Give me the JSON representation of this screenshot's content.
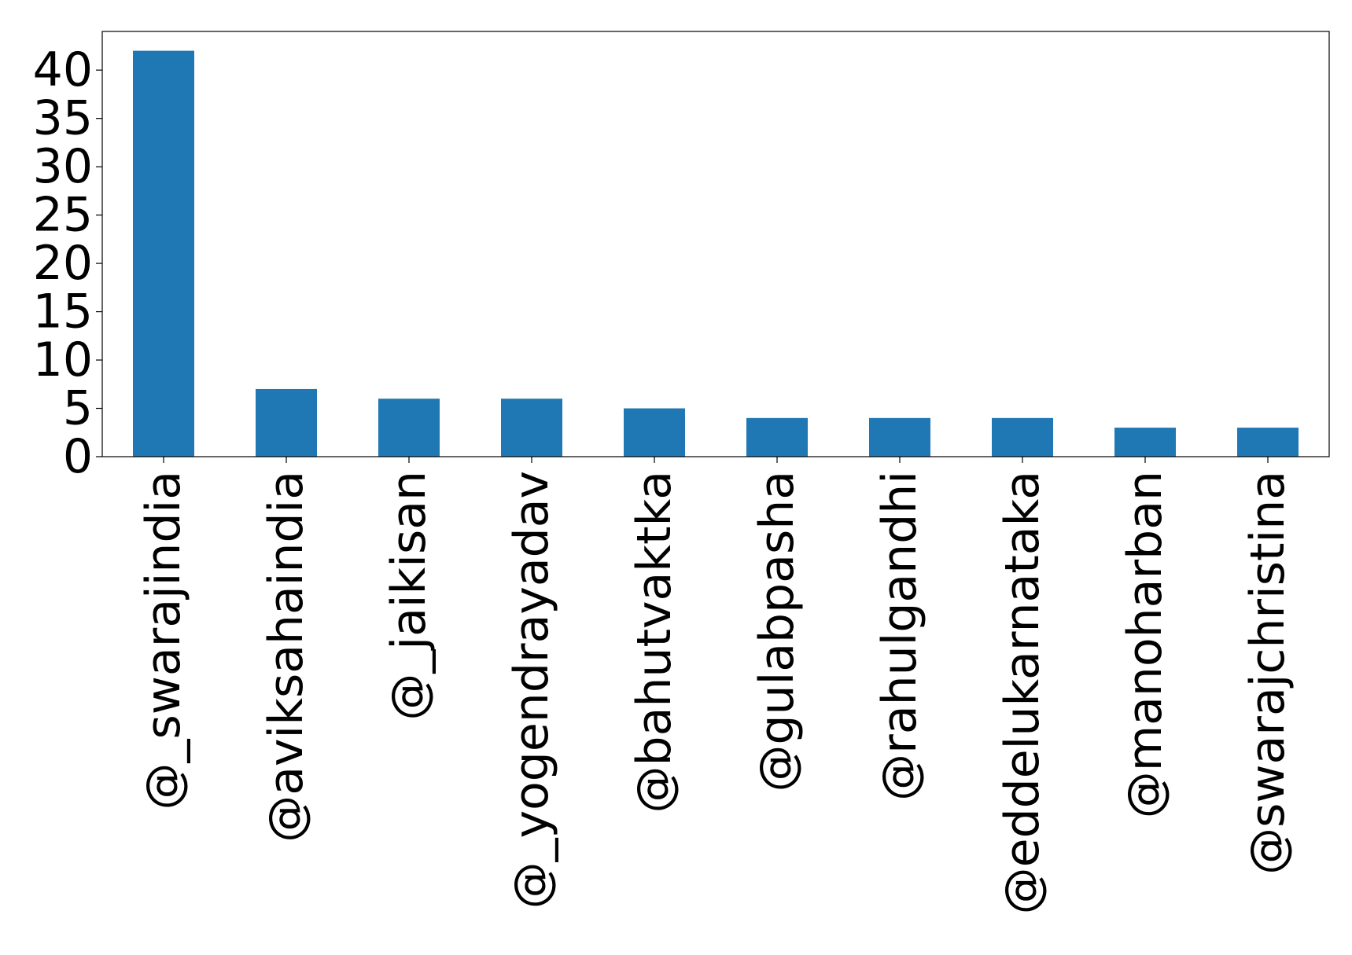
{
  "chart_data": {
    "type": "bar",
    "categories": [
      "@_swarajindia",
      "@aviksahaindia",
      "@_jaikisan",
      "@_yogendrayadav",
      "@bahutvaktka",
      "@gulabpasha",
      "@rahulgandhi",
      "@eddelukarnataka",
      "@manoharban",
      "@swarajchristina"
    ],
    "values": [
      42,
      7,
      6,
      6,
      5,
      4,
      4,
      4,
      3,
      3
    ],
    "yticks": [
      "0",
      "5",
      "10",
      "15",
      "20",
      "25",
      "30",
      "35",
      "40"
    ],
    "ylim": [
      0,
      44
    ],
    "title": "",
    "xlabel": "",
    "ylabel": "",
    "grid": false,
    "bar_color": "#1f77b4"
  }
}
